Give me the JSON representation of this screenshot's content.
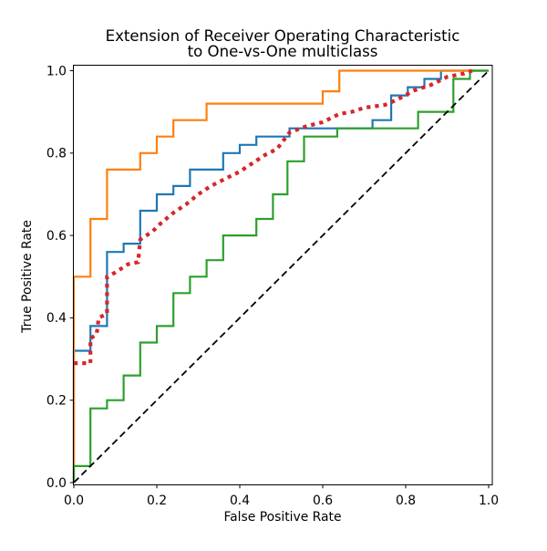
{
  "figure": {
    "title_line1": "Extension of Receiver Operating Characteristic",
    "title_line2": "to One-vs-One multiclass",
    "xlabel": "False Positive Rate",
    "ylabel": "True Positive Rate"
  },
  "chart_data": {
    "type": "line",
    "title": "Extension of Receiver Operating Characteristic to One-vs-One multiclass",
    "xlabel": "False Positive Rate",
    "ylabel": "True Positive Rate",
    "xlim": [
      0,
      1
    ],
    "ylim": [
      0,
      1
    ],
    "xtick_labels": [
      "0.0",
      "0.2",
      "0.4",
      "0.6",
      "0.8",
      "1.0"
    ],
    "ytick_labels": [
      "0.0",
      "0.2",
      "0.4",
      "0.6",
      "0.8",
      "1.0"
    ],
    "grid": false,
    "legend": null,
    "series": [
      {
        "name": "roc-step-curve-blue",
        "color": "#1f77b4",
        "style": "solid",
        "width": 2.2,
        "points": [
          [
            0,
            0
          ],
          [
            0,
            0.32
          ],
          [
            0.04,
            0.32
          ],
          [
            0.04,
            0.38
          ],
          [
            0.08,
            0.38
          ],
          [
            0.08,
            0.56
          ],
          [
            0.12,
            0.56
          ],
          [
            0.12,
            0.58
          ],
          [
            0.16,
            0.58
          ],
          [
            0.16,
            0.66
          ],
          [
            0.2,
            0.66
          ],
          [
            0.2,
            0.7
          ],
          [
            0.24,
            0.7
          ],
          [
            0.24,
            0.72
          ],
          [
            0.28,
            0.72
          ],
          [
            0.28,
            0.76
          ],
          [
            0.36,
            0.76
          ],
          [
            0.36,
            0.8
          ],
          [
            0.4,
            0.8
          ],
          [
            0.4,
            0.82
          ],
          [
            0.44,
            0.82
          ],
          [
            0.44,
            0.84
          ],
          [
            0.52,
            0.84
          ],
          [
            0.52,
            0.86
          ],
          [
            0.72,
            0.86
          ],
          [
            0.72,
            0.88
          ],
          [
            0.765,
            0.88
          ],
          [
            0.765,
            0.94
          ],
          [
            0.805,
            0.94
          ],
          [
            0.805,
            0.96
          ],
          [
            0.845,
            0.96
          ],
          [
            0.845,
            0.98
          ],
          [
            0.885,
            0.98
          ],
          [
            0.885,
            1.0
          ],
          [
            1.0,
            1.0
          ]
        ]
      },
      {
        "name": "roc-step-curve-orange",
        "color": "#ff7f0e",
        "style": "solid",
        "width": 2.2,
        "points": [
          [
            0,
            0
          ],
          [
            0,
            0.5
          ],
          [
            0.04,
            0.5
          ],
          [
            0.04,
            0.64
          ],
          [
            0.08,
            0.64
          ],
          [
            0.08,
            0.76
          ],
          [
            0.16,
            0.76
          ],
          [
            0.16,
            0.8
          ],
          [
            0.2,
            0.8
          ],
          [
            0.2,
            0.84
          ],
          [
            0.24,
            0.84
          ],
          [
            0.24,
            0.88
          ],
          [
            0.32,
            0.88
          ],
          [
            0.32,
            0.92
          ],
          [
            0.6,
            0.92
          ],
          [
            0.6,
            0.95
          ],
          [
            0.64,
            0.95
          ],
          [
            0.64,
            1.0
          ],
          [
            1.0,
            1.0
          ]
        ]
      },
      {
        "name": "roc-step-curve-green",
        "color": "#2ca02c",
        "style": "solid",
        "width": 2.2,
        "points": [
          [
            0,
            0
          ],
          [
            0,
            0.04
          ],
          [
            0.04,
            0.04
          ],
          [
            0.04,
            0.18
          ],
          [
            0.08,
            0.18
          ],
          [
            0.08,
            0.2
          ],
          [
            0.12,
            0.2
          ],
          [
            0.12,
            0.26
          ],
          [
            0.16,
            0.26
          ],
          [
            0.16,
            0.34
          ],
          [
            0.2,
            0.34
          ],
          [
            0.2,
            0.38
          ],
          [
            0.24,
            0.38
          ],
          [
            0.24,
            0.46
          ],
          [
            0.28,
            0.46
          ],
          [
            0.28,
            0.5
          ],
          [
            0.32,
            0.5
          ],
          [
            0.32,
            0.54
          ],
          [
            0.36,
            0.54
          ],
          [
            0.36,
            0.6
          ],
          [
            0.44,
            0.6
          ],
          [
            0.44,
            0.64
          ],
          [
            0.48,
            0.64
          ],
          [
            0.48,
            0.7
          ],
          [
            0.515,
            0.7
          ],
          [
            0.515,
            0.78
          ],
          [
            0.555,
            0.78
          ],
          [
            0.555,
            0.84
          ],
          [
            0.635,
            0.84
          ],
          [
            0.635,
            0.86
          ],
          [
            0.83,
            0.86
          ],
          [
            0.83,
            0.9
          ],
          [
            0.915,
            0.9
          ],
          [
            0.915,
            0.98
          ],
          [
            0.955,
            0.98
          ],
          [
            0.955,
            1.0
          ],
          [
            1.0,
            1.0
          ]
        ]
      },
      {
        "name": "macro-average-dotted-red",
        "color": "#d62728",
        "style": "dotted",
        "width": 4.2,
        "points": [
          [
            0,
            0.29
          ],
          [
            0.04,
            0.29
          ],
          [
            0.04,
            0.35
          ],
          [
            0.055,
            0.36
          ],
          [
            0.06,
            0.4
          ],
          [
            0.08,
            0.41
          ],
          [
            0.08,
            0.5
          ],
          [
            0.1,
            0.51
          ],
          [
            0.13,
            0.53
          ],
          [
            0.155,
            0.535
          ],
          [
            0.16,
            0.59
          ],
          [
            0.19,
            0.61
          ],
          [
            0.21,
            0.63
          ],
          [
            0.24,
            0.655
          ],
          [
            0.27,
            0.675
          ],
          [
            0.3,
            0.7
          ],
          [
            0.33,
            0.72
          ],
          [
            0.36,
            0.735
          ],
          [
            0.4,
            0.755
          ],
          [
            0.43,
            0.775
          ],
          [
            0.46,
            0.795
          ],
          [
            0.49,
            0.81
          ],
          [
            0.52,
            0.85
          ],
          [
            0.56,
            0.865
          ],
          [
            0.6,
            0.875
          ],
          [
            0.64,
            0.895
          ],
          [
            0.67,
            0.9
          ],
          [
            0.7,
            0.91
          ],
          [
            0.75,
            0.917
          ],
          [
            0.78,
            0.93
          ],
          [
            0.82,
            0.952
          ],
          [
            0.86,
            0.965
          ],
          [
            0.9,
            0.985
          ],
          [
            0.94,
            0.993
          ],
          [
            0.96,
            1.0
          ]
        ]
      },
      {
        "name": "chance-diagonal",
        "color": "#000000",
        "style": "dashed",
        "width": 1.8,
        "points": [
          [
            0,
            0
          ],
          [
            1,
            1
          ]
        ]
      }
    ]
  }
}
